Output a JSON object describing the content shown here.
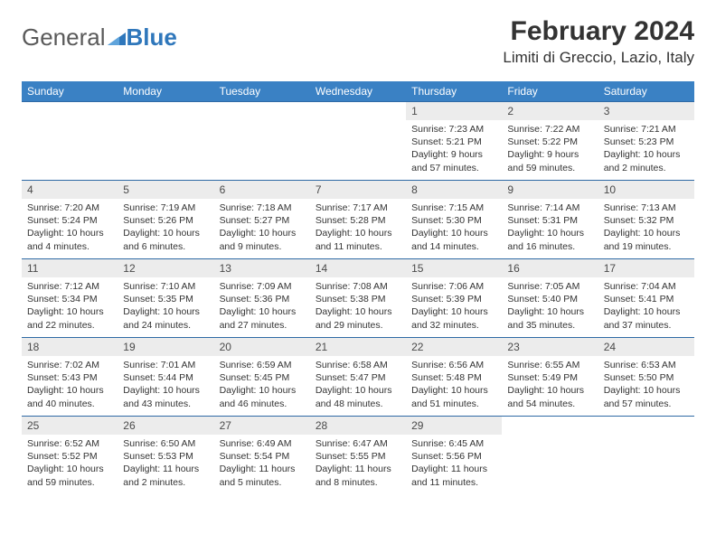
{
  "logo": {
    "part1": "General",
    "part2": "Blue"
  },
  "title": "February 2024",
  "location": "Limiti di Greccio, Lazio, Italy",
  "colors": {
    "header_bg": "#3a81c4",
    "header_text": "#ffffff",
    "daynum_bg": "#ececec",
    "border": "#2f6aa5",
    "text": "#333333",
    "logo_gray": "#5a5a5a",
    "logo_blue": "#2f77bb"
  },
  "weekdays": [
    "Sunday",
    "Monday",
    "Tuesday",
    "Wednesday",
    "Thursday",
    "Friday",
    "Saturday"
  ],
  "weeks": [
    [
      {
        "day": "",
        "sunrise": "",
        "sunset": "",
        "daylight": "",
        "empty": true
      },
      {
        "day": "",
        "sunrise": "",
        "sunset": "",
        "daylight": "",
        "empty": true
      },
      {
        "day": "",
        "sunrise": "",
        "sunset": "",
        "daylight": "",
        "empty": true
      },
      {
        "day": "",
        "sunrise": "",
        "sunset": "",
        "daylight": "",
        "empty": true
      },
      {
        "day": "1",
        "sunrise": "Sunrise: 7:23 AM",
        "sunset": "Sunset: 5:21 PM",
        "daylight": "Daylight: 9 hours and 57 minutes."
      },
      {
        "day": "2",
        "sunrise": "Sunrise: 7:22 AM",
        "sunset": "Sunset: 5:22 PM",
        "daylight": "Daylight: 9 hours and 59 minutes."
      },
      {
        "day": "3",
        "sunrise": "Sunrise: 7:21 AM",
        "sunset": "Sunset: 5:23 PM",
        "daylight": "Daylight: 10 hours and 2 minutes."
      }
    ],
    [
      {
        "day": "4",
        "sunrise": "Sunrise: 7:20 AM",
        "sunset": "Sunset: 5:24 PM",
        "daylight": "Daylight: 10 hours and 4 minutes."
      },
      {
        "day": "5",
        "sunrise": "Sunrise: 7:19 AM",
        "sunset": "Sunset: 5:26 PM",
        "daylight": "Daylight: 10 hours and 6 minutes."
      },
      {
        "day": "6",
        "sunrise": "Sunrise: 7:18 AM",
        "sunset": "Sunset: 5:27 PM",
        "daylight": "Daylight: 10 hours and 9 minutes."
      },
      {
        "day": "7",
        "sunrise": "Sunrise: 7:17 AM",
        "sunset": "Sunset: 5:28 PM",
        "daylight": "Daylight: 10 hours and 11 minutes."
      },
      {
        "day": "8",
        "sunrise": "Sunrise: 7:15 AM",
        "sunset": "Sunset: 5:30 PM",
        "daylight": "Daylight: 10 hours and 14 minutes."
      },
      {
        "day": "9",
        "sunrise": "Sunrise: 7:14 AM",
        "sunset": "Sunset: 5:31 PM",
        "daylight": "Daylight: 10 hours and 16 minutes."
      },
      {
        "day": "10",
        "sunrise": "Sunrise: 7:13 AM",
        "sunset": "Sunset: 5:32 PM",
        "daylight": "Daylight: 10 hours and 19 minutes."
      }
    ],
    [
      {
        "day": "11",
        "sunrise": "Sunrise: 7:12 AM",
        "sunset": "Sunset: 5:34 PM",
        "daylight": "Daylight: 10 hours and 22 minutes."
      },
      {
        "day": "12",
        "sunrise": "Sunrise: 7:10 AM",
        "sunset": "Sunset: 5:35 PM",
        "daylight": "Daylight: 10 hours and 24 minutes."
      },
      {
        "day": "13",
        "sunrise": "Sunrise: 7:09 AM",
        "sunset": "Sunset: 5:36 PM",
        "daylight": "Daylight: 10 hours and 27 minutes."
      },
      {
        "day": "14",
        "sunrise": "Sunrise: 7:08 AM",
        "sunset": "Sunset: 5:38 PM",
        "daylight": "Daylight: 10 hours and 29 minutes."
      },
      {
        "day": "15",
        "sunrise": "Sunrise: 7:06 AM",
        "sunset": "Sunset: 5:39 PM",
        "daylight": "Daylight: 10 hours and 32 minutes."
      },
      {
        "day": "16",
        "sunrise": "Sunrise: 7:05 AM",
        "sunset": "Sunset: 5:40 PM",
        "daylight": "Daylight: 10 hours and 35 minutes."
      },
      {
        "day": "17",
        "sunrise": "Sunrise: 7:04 AM",
        "sunset": "Sunset: 5:41 PM",
        "daylight": "Daylight: 10 hours and 37 minutes."
      }
    ],
    [
      {
        "day": "18",
        "sunrise": "Sunrise: 7:02 AM",
        "sunset": "Sunset: 5:43 PM",
        "daylight": "Daylight: 10 hours and 40 minutes."
      },
      {
        "day": "19",
        "sunrise": "Sunrise: 7:01 AM",
        "sunset": "Sunset: 5:44 PM",
        "daylight": "Daylight: 10 hours and 43 minutes."
      },
      {
        "day": "20",
        "sunrise": "Sunrise: 6:59 AM",
        "sunset": "Sunset: 5:45 PM",
        "daylight": "Daylight: 10 hours and 46 minutes."
      },
      {
        "day": "21",
        "sunrise": "Sunrise: 6:58 AM",
        "sunset": "Sunset: 5:47 PM",
        "daylight": "Daylight: 10 hours and 48 minutes."
      },
      {
        "day": "22",
        "sunrise": "Sunrise: 6:56 AM",
        "sunset": "Sunset: 5:48 PM",
        "daylight": "Daylight: 10 hours and 51 minutes."
      },
      {
        "day": "23",
        "sunrise": "Sunrise: 6:55 AM",
        "sunset": "Sunset: 5:49 PM",
        "daylight": "Daylight: 10 hours and 54 minutes."
      },
      {
        "day": "24",
        "sunrise": "Sunrise: 6:53 AM",
        "sunset": "Sunset: 5:50 PM",
        "daylight": "Daylight: 10 hours and 57 minutes."
      }
    ],
    [
      {
        "day": "25",
        "sunrise": "Sunrise: 6:52 AM",
        "sunset": "Sunset: 5:52 PM",
        "daylight": "Daylight: 10 hours and 59 minutes."
      },
      {
        "day": "26",
        "sunrise": "Sunrise: 6:50 AM",
        "sunset": "Sunset: 5:53 PM",
        "daylight": "Daylight: 11 hours and 2 minutes."
      },
      {
        "day": "27",
        "sunrise": "Sunrise: 6:49 AM",
        "sunset": "Sunset: 5:54 PM",
        "daylight": "Daylight: 11 hours and 5 minutes."
      },
      {
        "day": "28",
        "sunrise": "Sunrise: 6:47 AM",
        "sunset": "Sunset: 5:55 PM",
        "daylight": "Daylight: 11 hours and 8 minutes."
      },
      {
        "day": "29",
        "sunrise": "Sunrise: 6:45 AM",
        "sunset": "Sunset: 5:56 PM",
        "daylight": "Daylight: 11 hours and 11 minutes."
      },
      {
        "day": "",
        "sunrise": "",
        "sunset": "",
        "daylight": "",
        "empty": true
      },
      {
        "day": "",
        "sunrise": "",
        "sunset": "",
        "daylight": "",
        "empty": true
      }
    ]
  ]
}
